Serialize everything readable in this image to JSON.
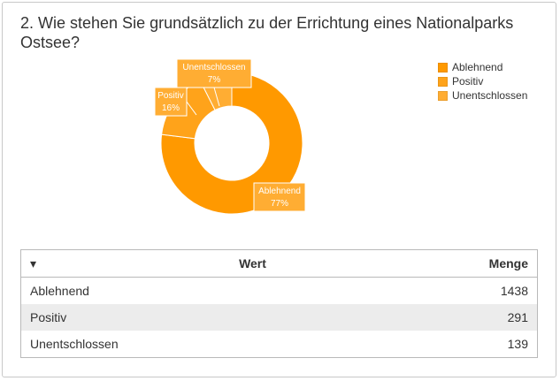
{
  "question": {
    "title": "2. Wie stehen Sie grundsätzlich zu der Errichtung eines Nationalparks Ostsee?"
  },
  "chart_data": {
    "type": "pie",
    "donut": true,
    "title": "",
    "categories": [
      "Ablehnend",
      "Positiv",
      "Unentschlossen"
    ],
    "values": [
      1438,
      291,
      139
    ],
    "percent_labels": [
      "77%",
      "16%",
      "7%"
    ],
    "colors": [
      "#ff9900",
      "#ffa31a",
      "#ffad33"
    ],
    "label_bg": "#ffad33",
    "legend_position": "right"
  },
  "legend": {
    "items": [
      {
        "label": "Ablehnend",
        "color": "#ff9900"
      },
      {
        "label": "Positiv",
        "color": "#ffa31a"
      },
      {
        "label": "Unentschlossen",
        "color": "#ffad33"
      }
    ]
  },
  "table": {
    "sort_icon": "▾",
    "headers": {
      "value": "Wert",
      "count": "Menge"
    },
    "rows": [
      {
        "value": "Ablehnend",
        "count": "1438"
      },
      {
        "value": "Positiv",
        "count": "291"
      },
      {
        "value": "Unentschlossen",
        "count": "139"
      }
    ]
  }
}
